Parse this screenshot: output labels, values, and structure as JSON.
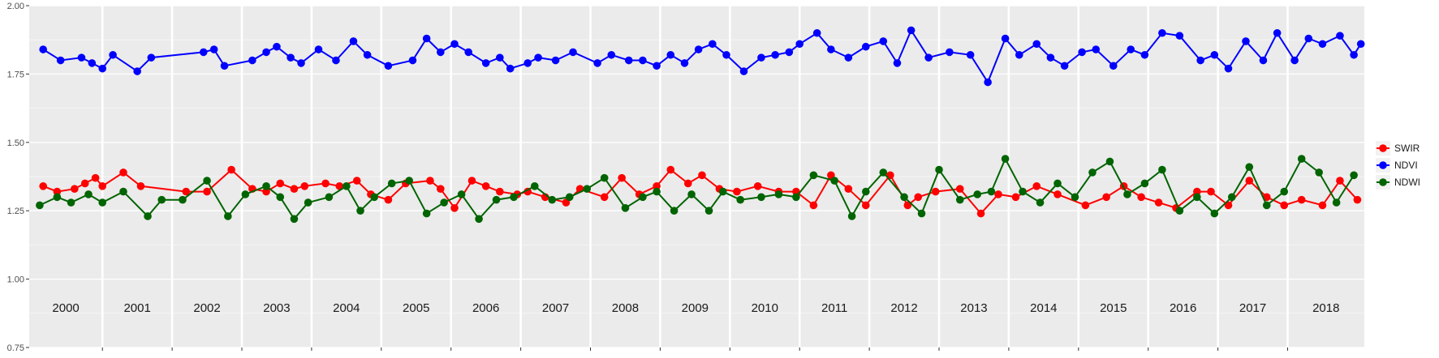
{
  "chart_data": {
    "type": "line",
    "title": "",
    "xlabel": "",
    "ylabel": "",
    "ylim": [
      0.75,
      2.0
    ],
    "y_ticks": [
      "0.75",
      "1.00",
      "1.25",
      "1.50",
      "1.75",
      "2.00"
    ],
    "y_tick_values": [
      0.75,
      1.0,
      1.25,
      1.5,
      1.75,
      2.0
    ],
    "x_range": [
      1999.95,
      2019.1
    ],
    "grid": true,
    "legend_position": "right",
    "years": [
      "2000",
      "2001",
      "2002",
      "2003",
      "2004",
      "2005",
      "2006",
      "2007",
      "2008",
      "2009",
      "2010",
      "2011",
      "2012",
      "2013",
      "2014",
      "2015",
      "2016",
      "2017",
      "2018"
    ],
    "year_boundaries": [
      2001,
      2002,
      2003,
      2004,
      2005,
      2006,
      2007,
      2008,
      2009,
      2010,
      2011,
      2012,
      2013,
      2014,
      2015,
      2016,
      2017,
      2018
    ],
    "series": [
      {
        "name": "SWIR",
        "color": "#ff0000",
        "x": [
          2000.15,
          2000.35,
          2000.6,
          2000.75,
          2000.9,
          2001.0,
          2001.3,
          2001.55,
          2002.2,
          2002.5,
          2002.85,
          2003.15,
          2003.35,
          2003.55,
          2003.75,
          2003.9,
          2004.2,
          2004.4,
          2004.65,
          2004.85,
          2005.1,
          2005.35,
          2005.7,
          2005.85,
          2006.05,
          2006.3,
          2006.5,
          2006.7,
          2006.95,
          2007.1,
          2007.35,
          2007.65,
          2007.85,
          2008.2,
          2008.45,
          2008.7,
          2008.95,
          2009.15,
          2009.4,
          2009.6,
          2009.85,
          2010.1,
          2010.4,
          2010.7,
          2010.95,
          2011.2,
          2011.45,
          2011.7,
          2011.95,
          2012.3,
          2012.55,
          2012.7,
          2012.95,
          2013.3,
          2013.6,
          2013.85,
          2014.1,
          2014.4,
          2014.7,
          2015.1,
          2015.4,
          2015.65,
          2015.9,
          2016.15,
          2016.4,
          2016.7,
          2016.9,
          2017.15,
          2017.45,
          2017.7,
          2017.95,
          2018.2,
          2018.5,
          2018.75,
          2019.0
        ],
        "values": [
          1.34,
          1.32,
          1.33,
          1.35,
          1.37,
          1.34,
          1.39,
          1.34,
          1.32,
          1.32,
          1.4,
          1.33,
          1.32,
          1.35,
          1.33,
          1.34,
          1.35,
          1.34,
          1.36,
          1.31,
          1.29,
          1.35,
          1.36,
          1.33,
          1.26,
          1.36,
          1.34,
          1.32,
          1.31,
          1.32,
          1.3,
          1.28,
          1.33,
          1.3,
          1.37,
          1.31,
          1.34,
          1.4,
          1.35,
          1.38,
          1.33,
          1.32,
          1.34,
          1.32,
          1.32,
          1.27,
          1.38,
          1.33,
          1.27,
          1.38,
          1.27,
          1.3,
          1.32,
          1.33,
          1.24,
          1.31,
          1.3,
          1.34,
          1.31,
          1.27,
          1.3,
          1.34,
          1.3,
          1.28,
          1.26,
          1.32,
          1.32,
          1.27,
          1.36,
          1.3,
          1.27,
          1.29,
          1.27,
          1.36,
          1.29
        ]
      },
      {
        "name": "NDVI",
        "color": "#0000ff",
        "x": [
          2000.15,
          2000.4,
          2000.7,
          2000.85,
          2001.0,
          2001.15,
          2001.5,
          2001.7,
          2002.45,
          2002.6,
          2002.75,
          2003.15,
          2003.35,
          2003.5,
          2003.7,
          2003.85,
          2004.1,
          2004.35,
          2004.6,
          2004.8,
          2005.1,
          2005.45,
          2005.65,
          2005.85,
          2006.05,
          2006.25,
          2006.5,
          2006.7,
          2006.85,
          2007.1,
          2007.25,
          2007.5,
          2007.75,
          2008.1,
          2008.3,
          2008.55,
          2008.75,
          2008.95,
          2009.15,
          2009.35,
          2009.55,
          2009.75,
          2009.95,
          2010.2,
          2010.45,
          2010.65,
          2010.85,
          2011.0,
          2011.25,
          2011.45,
          2011.7,
          2011.95,
          2012.2,
          2012.4,
          2012.6,
          2012.85,
          2013.15,
          2013.45,
          2013.7,
          2013.95,
          2014.15,
          2014.4,
          2014.6,
          2014.8,
          2015.05,
          2015.25,
          2015.5,
          2015.75,
          2015.95,
          2016.2,
          2016.45,
          2016.75,
          2016.95,
          2017.15,
          2017.4,
          2017.65,
          2017.85,
          2018.1,
          2018.3,
          2018.5,
          2018.75,
          2018.95,
          2019.05
        ],
        "values": [
          1.84,
          1.8,
          1.81,
          1.79,
          1.77,
          1.82,
          1.76,
          1.81,
          1.83,
          1.84,
          1.78,
          1.8,
          1.83,
          1.85,
          1.81,
          1.79,
          1.84,
          1.8,
          1.87,
          1.82,
          1.78,
          1.8,
          1.88,
          1.83,
          1.86,
          1.83,
          1.79,
          1.81,
          1.77,
          1.79,
          1.81,
          1.8,
          1.83,
          1.79,
          1.82,
          1.8,
          1.8,
          1.78,
          1.82,
          1.79,
          1.84,
          1.86,
          1.82,
          1.76,
          1.81,
          1.82,
          1.83,
          1.86,
          1.9,
          1.84,
          1.81,
          1.85,
          1.87,
          1.79,
          1.91,
          1.81,
          1.83,
          1.82,
          1.72,
          1.88,
          1.82,
          1.86,
          1.81,
          1.78,
          1.83,
          1.84,
          1.78,
          1.84,
          1.82,
          1.9,
          1.89,
          1.8,
          1.82,
          1.77,
          1.87,
          1.8,
          1.9,
          1.8,
          1.88,
          1.86,
          1.89,
          1.82,
          1.86
        ]
      },
      {
        "name": "NDWI",
        "color": "#006400",
        "x": [
          2000.1,
          2000.35,
          2000.55,
          2000.8,
          2001.0,
          2001.3,
          2001.65,
          2001.85,
          2002.15,
          2002.5,
          2002.8,
          2003.05,
          2003.35,
          2003.55,
          2003.75,
          2003.95,
          2004.25,
          2004.5,
          2004.7,
          2004.9,
          2005.15,
          2005.4,
          2005.65,
          2005.9,
          2006.15,
          2006.4,
          2006.65,
          2006.9,
          2007.2,
          2007.45,
          2007.7,
          2007.95,
          2008.2,
          2008.5,
          2008.75,
          2008.95,
          2009.2,
          2009.45,
          2009.7,
          2009.9,
          2010.15,
          2010.45,
          2010.7,
          2010.95,
          2011.2,
          2011.5,
          2011.75,
          2011.95,
          2012.2,
          2012.5,
          2012.75,
          2013.0,
          2013.3,
          2013.55,
          2013.75,
          2013.95,
          2014.2,
          2014.45,
          2014.7,
          2014.95,
          2015.2,
          2015.45,
          2015.7,
          2015.95,
          2016.2,
          2016.45,
          2016.7,
          2016.95,
          2017.2,
          2017.45,
          2017.7,
          2017.95,
          2018.2,
          2018.45,
          2018.7,
          2018.95
        ],
        "values": [
          1.27,
          1.3,
          1.28,
          1.31,
          1.28,
          1.32,
          1.23,
          1.29,
          1.29,
          1.36,
          1.23,
          1.31,
          1.34,
          1.3,
          1.22,
          1.28,
          1.3,
          1.34,
          1.25,
          1.3,
          1.35,
          1.36,
          1.24,
          1.28,
          1.31,
          1.22,
          1.29,
          1.3,
          1.34,
          1.29,
          1.3,
          1.33,
          1.37,
          1.26,
          1.3,
          1.32,
          1.25,
          1.31,
          1.25,
          1.32,
          1.29,
          1.3,
          1.31,
          1.3,
          1.38,
          1.36,
          1.23,
          1.32,
          1.39,
          1.3,
          1.24,
          1.4,
          1.29,
          1.31,
          1.32,
          1.44,
          1.32,
          1.28,
          1.35,
          1.3,
          1.39,
          1.43,
          1.31,
          1.35,
          1.4,
          1.25,
          1.3,
          1.24,
          1.3,
          1.41,
          1.27,
          1.32,
          1.44,
          1.39,
          1.28,
          1.38
        ]
      }
    ]
  }
}
